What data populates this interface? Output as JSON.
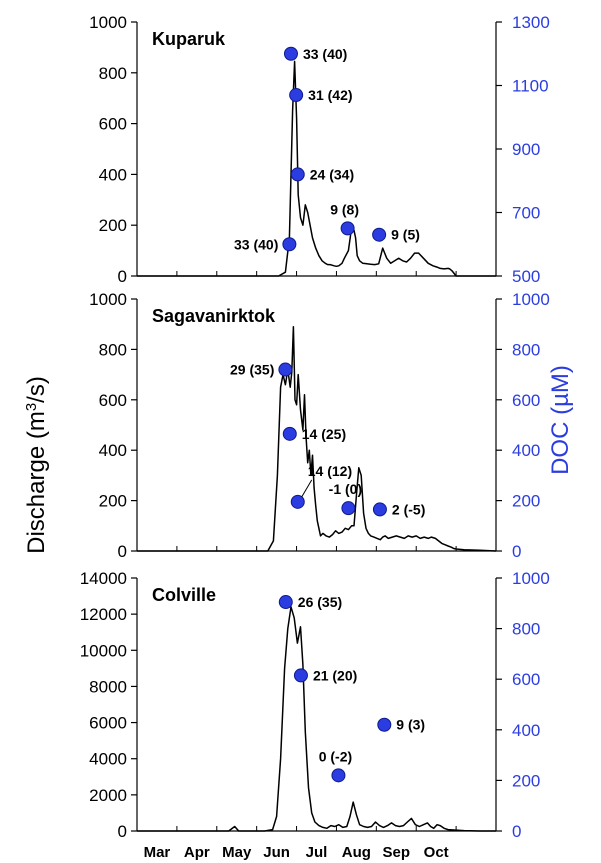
{
  "chart_data": [
    {
      "type": "line",
      "title": "Kuparuk",
      "x_domain": [
        "Mar",
        "Oct"
      ],
      "ylim": [
        0,
        1000
      ],
      "y_ticks": [
        "0",
        "200",
        "400",
        "600",
        "800",
        "1000"
      ],
      "y2lim": [
        500,
        1300
      ],
      "y2_ticks": [
        "500",
        "700",
        "900",
        "1100",
        "1300"
      ],
      "series": [
        {
          "kind": "discharge",
          "x": [
            0,
            3.55,
            3.72,
            3.82,
            3.9,
            3.95,
            4.0,
            4.04,
            4.1,
            4.16,
            4.22,
            4.28,
            4.34,
            4.4,
            4.48,
            4.56,
            4.64,
            4.72,
            4.78,
            4.84,
            4.9,
            4.94,
            5.0,
            5.06,
            5.14,
            5.2,
            5.3,
            5.38,
            5.44,
            5.48,
            5.52,
            5.58,
            5.66,
            5.76,
            5.86,
            5.96,
            6.06,
            6.16,
            6.26,
            6.36,
            6.46,
            6.56,
            6.66,
            6.76,
            6.86,
            6.96,
            7.06,
            7.18,
            7.3,
            7.42,
            7.52,
            7.6,
            7.7,
            7.8,
            7.84,
            7.86,
            7.9,
            8.0,
            8.5,
            9.0
          ],
          "y": [
            0,
            0,
            15,
            150,
            650,
            845,
            620,
            320,
            230,
            200,
            280,
            250,
            200,
            150,
            110,
            80,
            60,
            50,
            45,
            45,
            42,
            40,
            38,
            40,
            50,
            70,
            100,
            190,
            180,
            150,
            80,
            60,
            50,
            48,
            46,
            45,
            48,
            110,
            70,
            50,
            60,
            70,
            60,
            55,
            70,
            90,
            90,
            70,
            50,
            40,
            35,
            30,
            28,
            30,
            28,
            25,
            20,
            0,
            0,
            0
          ]
        },
        {
          "kind": "DOC",
          "points": [
            {
              "x": 3.82,
              "y": 600,
              "label": "33 (40)",
              "side": "left"
            },
            {
              "x": 3.86,
              "y": 1200,
              "label": "33 (40)",
              "side": "right"
            },
            {
              "x": 3.99,
              "y": 1070,
              "label": "31 (42)",
              "side": "right"
            },
            {
              "x": 4.03,
              "y": 820,
              "label": "24 (34)",
              "side": "right"
            },
            {
              "x": 5.28,
              "y": 650,
              "label": "9 (8)",
              "side": "above"
            },
            {
              "x": 6.07,
              "y": 630,
              "label": "9 (5)",
              "side": "right"
            }
          ]
        }
      ]
    },
    {
      "type": "line",
      "title": "Sagavanirktok",
      "x_domain": [
        "Mar",
        "Oct"
      ],
      "ylim": [
        0,
        1000
      ],
      "y_ticks": [
        "0",
        "200",
        "400",
        "600",
        "800",
        "1000"
      ],
      "y2lim": [
        0,
        1000
      ],
      "y2_ticks": [
        "0",
        "200",
        "400",
        "600",
        "800",
        "1000"
      ],
      "series": [
        {
          "kind": "discharge",
          "x": [
            0,
            3.28,
            3.42,
            3.52,
            3.6,
            3.66,
            3.72,
            3.78,
            3.84,
            3.88,
            3.92,
            3.96,
            4.0,
            4.04,
            4.1,
            4.16,
            4.2,
            4.24,
            4.28,
            4.32,
            4.36,
            4.4,
            4.44,
            4.48,
            4.52,
            4.56,
            4.6,
            4.66,
            4.74,
            4.82,
            4.9,
            4.98,
            5.06,
            5.14,
            5.22,
            5.3,
            5.38,
            5.44,
            5.5,
            5.56,
            5.62,
            5.68,
            5.74,
            5.8,
            5.86,
            5.94,
            6.02,
            6.1,
            6.16,
            6.22,
            6.3,
            6.4,
            6.5,
            6.6,
            6.7,
            6.8,
            6.9,
            7.0,
            7.1,
            7.2,
            7.3,
            7.38,
            7.48,
            7.56,
            7.64,
            7.72,
            7.8,
            7.88,
            7.94,
            8.0,
            8.2,
            8.6,
            9.0
          ],
          "y": [
            0,
            0,
            40,
            300,
            650,
            700,
            660,
            720,
            650,
            710,
            890,
            600,
            580,
            700,
            560,
            480,
            620,
            450,
            350,
            400,
            300,
            380,
            250,
            180,
            120,
            90,
            60,
            70,
            60,
            55,
            65,
            80,
            70,
            75,
            90,
            85,
            100,
            100,
            220,
            330,
            300,
            150,
            90,
            70,
            60,
            55,
            50,
            45,
            55,
            60,
            50,
            55,
            60,
            55,
            50,
            60,
            55,
            60,
            50,
            55,
            50,
            55,
            50,
            40,
            30,
            25,
            20,
            15,
            10,
            8,
            5,
            3,
            0
          ]
        },
        {
          "kind": "DOC",
          "points": [
            {
              "x": 3.72,
              "y": 720,
              "label": "29 (35)",
              "side": "left"
            },
            {
              "x": 3.83,
              "y": 465,
              "label": "14 (25)",
              "side": "right"
            },
            {
              "x": 4.03,
              "y": 195,
              "label": "14 (12)",
              "side": "leader"
            },
            {
              "x": 5.3,
              "y": 170,
              "label": "-1 (0)",
              "side": "above"
            },
            {
              "x": 6.09,
              "y": 165,
              "label": "2 (-5)",
              "side": "right"
            }
          ]
        }
      ]
    },
    {
      "type": "line",
      "title": "Colville",
      "x_domain": [
        "Mar",
        "Oct"
      ],
      "x_tick_labels": [
        "Mar",
        "Apr",
        "May",
        "Jun",
        "Jul",
        "Aug",
        "Sep",
        "Oct"
      ],
      "ylim": [
        0,
        14000
      ],
      "y_ticks": [
        "0",
        "2000",
        "4000",
        "6000",
        "8000",
        "10000",
        "12000",
        "14000"
      ],
      "y2lim": [
        0,
        1000
      ],
      "y2_ticks": [
        "0",
        "200",
        "400",
        "600",
        "800",
        "1000"
      ],
      "series": [
        {
          "kind": "discharge",
          "x": [
            0,
            2.3,
            2.45,
            2.55,
            2.62,
            2.8,
            3.2,
            3.4,
            3.5,
            3.6,
            3.7,
            3.78,
            3.86,
            3.94,
            4.02,
            4.1,
            4.16,
            4.22,
            4.3,
            4.38,
            4.46,
            4.56,
            4.66,
            4.76,
            4.86,
            4.96,
            5.06,
            5.16,
            5.26,
            5.34,
            5.42,
            5.5,
            5.58,
            5.68,
            5.78,
            5.88,
            5.98,
            6.08,
            6.18,
            6.28,
            6.38,
            6.48,
            6.58,
            6.68,
            6.78,
            6.88,
            6.98,
            7.08,
            7.18,
            7.28,
            7.36,
            7.44,
            7.52,
            7.6,
            7.7,
            7.8,
            8.2,
            8.6,
            9.0
          ],
          "y": [
            0,
            0,
            250,
            0,
            0,
            0,
            0,
            80,
            800,
            4000,
            9000,
            11200,
            12400,
            11800,
            10400,
            11300,
            9200,
            5500,
            2400,
            1000,
            500,
            300,
            200,
            150,
            300,
            250,
            350,
            200,
            250,
            800,
            1600,
            900,
            350,
            250,
            200,
            250,
            500,
            300,
            200,
            300,
            450,
            300,
            250,
            300,
            500,
            700,
            350,
            250,
            350,
            450,
            250,
            150,
            350,
            300,
            150,
            80,
            20,
            0,
            0
          ]
        },
        {
          "kind": "DOC",
          "points": [
            {
              "x": 3.73,
              "y": 905,
              "label": "26 (35)",
              "side": "right"
            },
            {
              "x": 4.11,
              "y": 615,
              "label": "21 (20)",
              "side": "right"
            },
            {
              "x": 5.05,
              "y": 220,
              "label": "0 (-2)",
              "side": "above"
            },
            {
              "x": 6.2,
              "y": 420,
              "label": "9 (3)",
              "side": "right"
            }
          ]
        }
      ]
    }
  ],
  "y_axis_title": "Discharge (m3/s)",
  "y2_axis_title": "DOC (µM)",
  "colors": {
    "marker": "#2b3de0",
    "marker_stroke": "#0d1a8c",
    "right_axis": "#2b3de0",
    "line": "#000000"
  }
}
